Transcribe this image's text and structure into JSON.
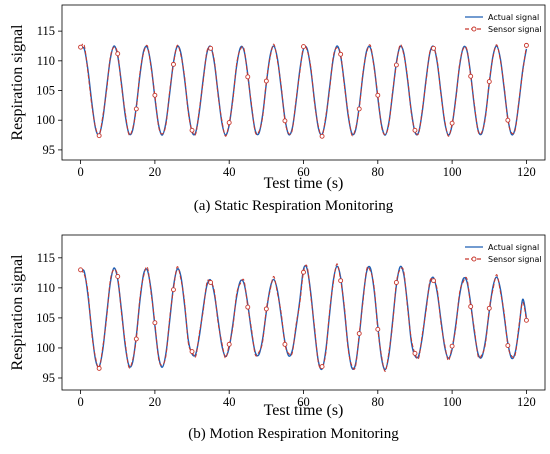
{
  "chart_data": [
    {
      "type": "line",
      "caption": "(a) Static Respiration Monitoring",
      "x_label": "Test time (s)",
      "y_label": "Respiration signal",
      "xlim": [
        -5,
        125
      ],
      "ylim": [
        93.3,
        119.4
      ],
      "xticks": [
        0,
        20,
        40,
        60,
        80,
        100,
        120
      ],
      "yticks": [
        95,
        100,
        105,
        110,
        115
      ],
      "legend": "upper right",
      "markevery": 5,
      "x": [
        0,
        1,
        2,
        3,
        4,
        5,
        6,
        7,
        8,
        9,
        10,
        11,
        12,
        13,
        14,
        15,
        16,
        17,
        18,
        19,
        20,
        21,
        22,
        23,
        24,
        25,
        26,
        27,
        28,
        29,
        30,
        31,
        32,
        33,
        34,
        35,
        36,
        37,
        38,
        39,
        40,
        41,
        42,
        43,
        44,
        45,
        46,
        47,
        48,
        49,
        50,
        51,
        52,
        53,
        54,
        55,
        56,
        57,
        58,
        59,
        60,
        61,
        62,
        63,
        64,
        65,
        66,
        67,
        68,
        69,
        70,
        71,
        72,
        73,
        74,
        75,
        76,
        77,
        78,
        79,
        80,
        81,
        82,
        83,
        84,
        85,
        86,
        87,
        88,
        89,
        90,
        91,
        92,
        93,
        94,
        95,
        96,
        97,
        98,
        99,
        100,
        101,
        102,
        103,
        104,
        105,
        106,
        107,
        108,
        109,
        110,
        111,
        112,
        113,
        114,
        115,
        116,
        117,
        118,
        119,
        120
      ],
      "series": [
        {
          "name": "Actual signal",
          "color": "#1f5fb4",
          "style": "solid",
          "marker": false,
          "values": [
            112.0,
            112.0,
            108.4,
            103.1,
            98.7,
            97.6,
            100.3,
            105.4,
            110.3,
            112.5,
            110.8,
            106.2,
            100.9,
            97.8,
            98.3,
            102.3,
            107.7,
            111.7,
            112.2,
            109.1,
            103.8,
            99.2,
            97.5,
            99.7,
            104.6,
            109.7,
            112.4,
            111.3,
            106.9,
            101.6,
            98.0,
            98.0,
            101.6,
            106.9,
            111.3,
            112.4,
            109.7,
            104.6,
            99.7,
            97.5,
            99.2,
            103.8,
            109.1,
            112.2,
            111.7,
            107.7,
            102.3,
            98.3,
            97.8,
            100.9,
            106.2,
            110.8,
            112.5,
            110.3,
            105.4,
            100.3,
            97.6,
            98.7,
            103.1,
            108.4,
            112.0,
            112.0,
            108.4,
            103.1,
            98.7,
            97.6,
            100.3,
            105.4,
            110.3,
            112.5,
            110.8,
            106.2,
            100.9,
            97.8,
            98.3,
            102.3,
            107.7,
            111.7,
            112.2,
            109.1,
            103.8,
            99.2,
            97.5,
            99.7,
            104.6,
            109.7,
            112.4,
            111.3,
            106.9,
            101.6,
            98.0,
            98.0,
            101.6,
            106.9,
            111.3,
            112.4,
            109.7,
            104.6,
            99.7,
            97.5,
            99.2,
            103.8,
            109.1,
            112.2,
            111.7,
            107.7,
            102.3,
            98.3,
            97.8,
            100.9,
            106.2,
            110.8,
            112.5,
            110.3,
            105.4,
            100.3,
            97.6,
            98.7,
            103.1,
            108.4,
            112.0
          ]
        },
        {
          "name": "Sensor signal",
          "color": "#c8372d",
          "style": "dashed",
          "marker": true,
          "values": [
            112.3,
            112.6,
            107.9,
            102.6,
            98.9,
            97.4,
            100.8,
            105.0,
            110.6,
            112.3,
            111.2,
            105.8,
            101.4,
            97.6,
            98.6,
            101.9,
            108.1,
            111.4,
            112.5,
            108.7,
            104.2,
            98.9,
            97.7,
            99.3,
            105.0,
            109.4,
            112.6,
            110.9,
            107.3,
            101.2,
            98.3,
            97.7,
            102.0,
            106.5,
            111.6,
            112.1,
            110.1,
            104.2,
            100.1,
            97.3,
            99.6,
            103.4,
            109.5,
            111.9,
            112.0,
            107.3,
            102.7,
            98.0,
            98.1,
            100.5,
            106.6,
            110.5,
            112.8,
            109.9,
            105.8,
            99.9,
            97.8,
            98.4,
            103.5,
            108.0,
            112.4,
            111.7,
            108.8,
            102.7,
            99.0,
            97.3,
            100.7,
            105.0,
            110.7,
            112.2,
            111.1,
            105.8,
            101.3,
            97.5,
            98.6,
            101.9,
            108.0,
            111.4,
            112.6,
            108.8,
            104.2,
            98.9,
            97.6,
            99.4,
            104.9,
            109.3,
            112.7,
            111.0,
            107.2,
            101.3,
            98.3,
            97.8,
            101.9,
            106.6,
            111.5,
            112.1,
            110.0,
            104.3,
            100.0,
            97.3,
            99.5,
            103.5,
            109.4,
            112.0,
            111.9,
            107.4,
            102.6,
            98.1,
            98.0,
            100.6,
            106.5,
            110.6,
            112.7,
            110.0,
            105.7,
            100.0,
            97.9,
            98.4,
            103.4,
            108.1,
            112.6
          ]
        }
      ]
    },
    {
      "type": "line",
      "caption": "(b) Motion Respiration Monitoring",
      "x_label": "Test time (s)",
      "y_label": "Respiration signal",
      "xlim": [
        -5,
        125
      ],
      "ylim": [
        93.0,
        118.8
      ],
      "xticks": [
        0,
        20,
        40,
        60,
        80,
        100,
        120
      ],
      "yticks": [
        95,
        100,
        105,
        110,
        115
      ],
      "legend": "upper right",
      "markevery": 5,
      "x": [
        0,
        1,
        2,
        3,
        4,
        5,
        6,
        7,
        8,
        9,
        10,
        11,
        12,
        13,
        14,
        15,
        16,
        17,
        18,
        19,
        20,
        21,
        22,
        23,
        24,
        25,
        26,
        27,
        28,
        29,
        30,
        31,
        32,
        33,
        34,
        35,
        36,
        37,
        38,
        39,
        40,
        41,
        42,
        43,
        44,
        45,
        46,
        47,
        48,
        49,
        50,
        51,
        52,
        53,
        54,
        55,
        56,
        57,
        58,
        59,
        60,
        61,
        62,
        63,
        64,
        65,
        66,
        67,
        68,
        69,
        70,
        71,
        72,
        73,
        74,
        75,
        76,
        77,
        78,
        79,
        80,
        81,
        82,
        83,
        84,
        85,
        86,
        87,
        88,
        89,
        90,
        91,
        92,
        93,
        94,
        95,
        96,
        97,
        98,
        99,
        100,
        101,
        102,
        103,
        104,
        105,
        106,
        107,
        108,
        109,
        110,
        111,
        112,
        113,
        114,
        115,
        116,
        117,
        118,
        119,
        120
      ],
      "series": [
        {
          "name": "Actual signal",
          "color": "#1f5fb4",
          "style": "solid",
          "marker": false,
          "values": [
            112.7,
            112.7,
            108.7,
            102.9,
            98.1,
            96.9,
            99.8,
            105.4,
            110.8,
            113.3,
            111.4,
            106.3,
            100.5,
            97.1,
            97.6,
            102.0,
            108.0,
            112.4,
            112.9,
            109.5,
            103.7,
            98.6,
            96.8,
            99.2,
            104.6,
            110.2,
            113.1,
            111.9,
            107.1,
            101.3,
            99.0,
            99.0,
            102.1,
            106.6,
            110.4,
            111.3,
            109.0,
            104.7,
            100.5,
            98.6,
            100.1,
            104.0,
            108.5,
            111.1,
            110.7,
            107.3,
            102.7,
            99.3,
            98.9,
            101.5,
            106.0,
            109.9,
            111.4,
            109.5,
            105.3,
            101.0,
            98.7,
            99.6,
            103.4,
            107.9,
            113.1,
            113.1,
            108.9,
            102.8,
            97.8,
            96.5,
            99.6,
            105.5,
            111.1,
            113.6,
            111.7,
            106.4,
            100.3,
            96.7,
            97.3,
            101.9,
            108.1,
            112.7,
            113.3,
            109.7,
            103.6,
            98.3,
            96.4,
            98.9,
            104.5,
            110.4,
            113.5,
            112.2,
            107.2,
            101.1,
            98.7,
            98.7,
            101.9,
            106.7,
            110.7,
            111.7,
            109.2,
            104.6,
            100.2,
            98.3,
            99.8,
            103.9,
            108.7,
            111.5,
            111.0,
            107.4,
            102.6,
            99.0,
            98.5,
            101.3,
            106.1,
            110.2,
            111.8,
            109.8,
            105.4,
            100.8,
            98.3,
            99.3,
            103.3,
            108.1,
            105.0
          ]
        },
        {
          "name": "Sensor signal",
          "color": "#c8372d",
          "style": "dashed",
          "marker": true,
          "values": [
            113.0,
            112.2,
            109.3,
            102.4,
            98.5,
            96.6,
            100.3,
            104.9,
            111.3,
            113.0,
            111.9,
            105.8,
            101.0,
            96.8,
            98.0,
            101.5,
            108.5,
            112.0,
            113.4,
            109.0,
            104.2,
            98.2,
            97.2,
            98.8,
            105.1,
            109.7,
            113.5,
            111.4,
            107.6,
            100.8,
            99.4,
            98.6,
            102.6,
            106.1,
            110.9,
            110.9,
            109.5,
            104.2,
            101.0,
            98.3,
            100.6,
            103.5,
            109.0,
            110.7,
            111.2,
            106.8,
            103.2,
            98.9,
            99.3,
            101.0,
            106.5,
            109.5,
            111.9,
            109.0,
            105.8,
            100.6,
            99.1,
            99.2,
            103.9,
            107.4,
            112.6,
            113.5,
            108.4,
            103.3,
            97.5,
            96.9,
            99.1,
            106.0,
            110.7,
            114.0,
            111.2,
            106.9,
            99.9,
            97.1,
            96.9,
            102.4,
            107.6,
            113.1,
            112.8,
            110.2,
            103.1,
            98.7,
            96.1,
            99.4,
            104.0,
            110.9,
            113.0,
            112.7,
            106.7,
            101.6,
            99.1,
            98.3,
            102.4,
            106.2,
            111.1,
            111.2,
            109.7,
            104.1,
            100.6,
            97.9,
            100.3,
            103.4,
            109.2,
            111.0,
            111.5,
            106.9,
            103.1,
            98.6,
            98.9,
            100.8,
            106.6,
            109.7,
            112.2,
            109.3,
            105.9,
            100.4,
            98.7,
            98.9,
            103.8,
            107.6,
            104.6
          ]
        }
      ]
    }
  ]
}
